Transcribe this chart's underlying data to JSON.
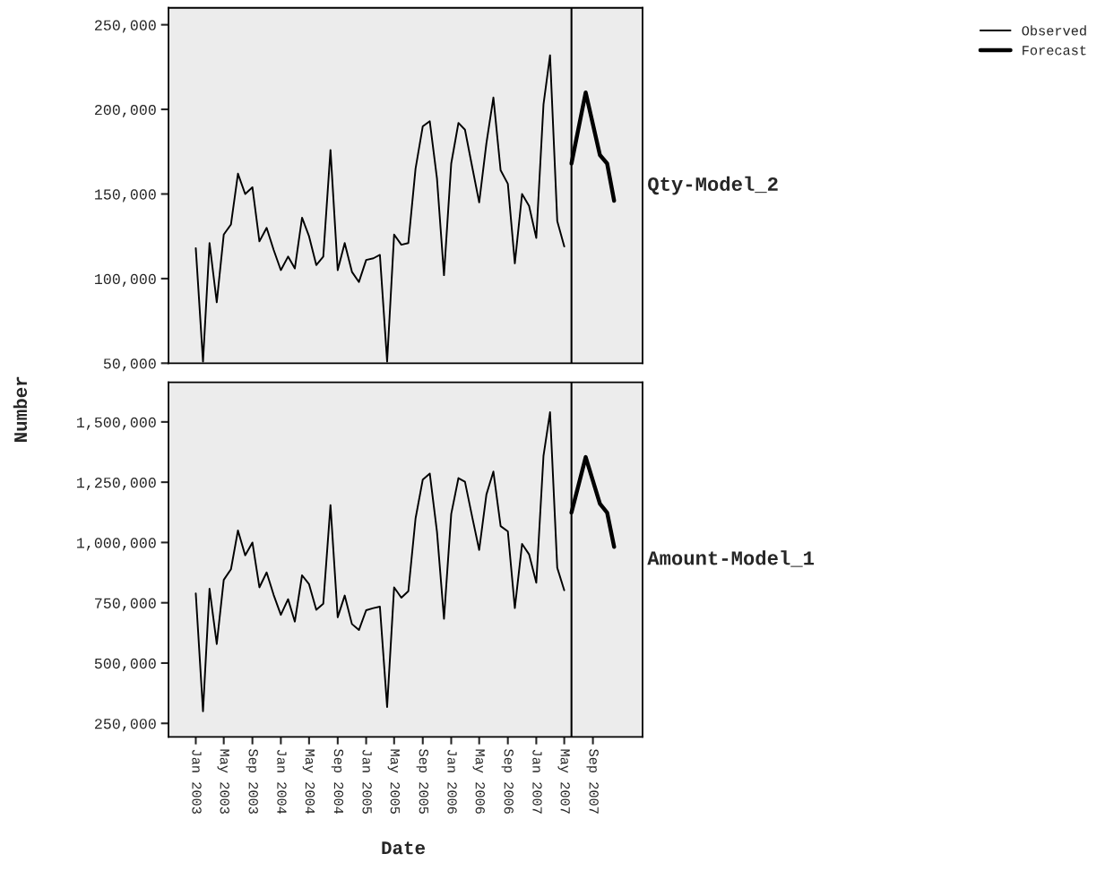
{
  "chart_data": [
    {
      "type": "line",
      "ylabel": "Number",
      "legend": "top right",
      "tick_labels": "y",
      "grid": false,
      "xlim": [
        "2002-09-06",
        "2008-04-01"
      ],
      "ylim": [
        50000,
        260000
      ],
      "yticks": [
        {
          "value": 50000,
          "label": "50,000"
        },
        {
          "value": 100000,
          "label": "100,000"
        },
        {
          "value": 150000,
          "label": "150,000"
        },
        {
          "value": 200000,
          "label": "200,000"
        },
        {
          "value": 250000,
          "label": "250,000"
        }
      ],
      "ref_lines": [
        {
          "axis": "x",
          "value": "2007-06",
          "color": "#000000"
        }
      ],
      "annotations": [
        "Qty-Model_2"
      ],
      "series": [
        {
          "name": "Observed",
          "color": "#000000",
          "x": [
            "2003-01",
            "2003-02",
            "2003-03",
            "2003-04",
            "2003-05",
            "2003-06",
            "2003-07",
            "2003-08",
            "2003-09",
            "2003-10",
            "2003-11",
            "2003-12",
            "2004-01",
            "2004-02",
            "2004-03",
            "2004-04",
            "2004-05",
            "2004-06",
            "2004-07",
            "2004-08",
            "2004-09",
            "2004-10",
            "2004-11",
            "2004-12",
            "2005-01",
            "2005-02",
            "2005-03",
            "2005-04",
            "2005-05",
            "2005-06",
            "2005-07",
            "2005-08",
            "2005-09",
            "2005-10",
            "2005-11",
            "2005-12",
            "2006-01",
            "2006-02",
            "2006-03",
            "2006-04",
            "2006-05",
            "2006-06",
            "2006-07",
            "2006-08",
            "2006-09",
            "2006-10",
            "2006-11",
            "2006-12",
            "2007-01",
            "2007-02",
            "2007-03",
            "2007-04",
            "2007-05"
          ],
          "values": [
            118000,
            51000,
            121000,
            86000,
            126000,
            132000,
            162000,
            150000,
            154000,
            122000,
            130000,
            117000,
            105000,
            113000,
            106000,
            136000,
            125000,
            108000,
            113000,
            176000,
            105000,
            121000,
            104000,
            98000,
            111000,
            112000,
            114000,
            51000,
            126000,
            120000,
            121000,
            165000,
            190000,
            193000,
            159000,
            102000,
            168000,
            192000,
            188000,
            166000,
            145000,
            180000,
            207000,
            164000,
            156000,
            109000,
            150000,
            143000,
            124000,
            203000,
            232000,
            134000,
            119000
          ]
        },
        {
          "name": "Forecast",
          "color": "#000000",
          "x": [
            "2007-06",
            "2007-08",
            "2007-10",
            "2007-11",
            "2007-12"
          ],
          "values": [
            168000,
            210000,
            173000,
            168000,
            146000
          ]
        }
      ]
    },
    {
      "type": "line",
      "xlabel": "Date",
      "legend": false,
      "grid": false,
      "xlim": [
        "2002-09-06",
        "2008-04-01"
      ],
      "ylim": [
        194000,
        1664000
      ],
      "xticks": [
        {
          "value": "2003-01",
          "label": "Jan 2003"
        },
        {
          "value": "2003-05",
          "label": "May 2003"
        },
        {
          "value": "2003-09",
          "label": "Sep 2003"
        },
        {
          "value": "2004-01",
          "label": "Jan 2004"
        },
        {
          "value": "2004-05",
          "label": "May 2004"
        },
        {
          "value": "2004-09",
          "label": "Sep 2004"
        },
        {
          "value": "2005-01",
          "label": "Jan 2005"
        },
        {
          "value": "2005-05",
          "label": "May 2005"
        },
        {
          "value": "2005-09",
          "label": "Sep 2005"
        },
        {
          "value": "2006-01",
          "label": "Jan 2006"
        },
        {
          "value": "2006-05",
          "label": "May 2006"
        },
        {
          "value": "2006-09",
          "label": "Sep 2006"
        },
        {
          "value": "2007-01",
          "label": "Jan 2007"
        },
        {
          "value": "2007-05",
          "label": "May 2007"
        },
        {
          "value": "2007-09",
          "label": "Sep 2007"
        }
      ],
      "yticks": [
        {
          "value": 250000,
          "label": "250,000"
        },
        {
          "value": 500000,
          "label": "500,000"
        },
        {
          "value": 750000,
          "label": "750,000"
        },
        {
          "value": 1000000,
          "label": "1,000,000"
        },
        {
          "value": 1250000,
          "label": "1,250,000"
        },
        {
          "value": 1500000,
          "label": "1,500,000"
        }
      ],
      "ref_lines": [
        {
          "axis": "x",
          "value": "2007-06",
          "color": "#000000"
        }
      ],
      "annotations": [
        "Amount-Model_1"
      ],
      "series": [
        {
          "color": "#000000",
          "x": [
            "2003-01",
            "2003-02",
            "2003-03",
            "2003-04",
            "2003-05",
            "2003-06",
            "2003-07",
            "2003-08",
            "2003-09",
            "2003-10",
            "2003-11",
            "2003-12",
            "2004-01",
            "2004-02",
            "2004-03",
            "2004-04",
            "2004-05",
            "2004-06",
            "2004-07",
            "2004-08",
            "2004-09",
            "2004-10",
            "2004-11",
            "2004-12",
            "2005-01",
            "2005-02",
            "2005-03",
            "2005-04",
            "2005-05",
            "2005-06",
            "2005-07",
            "2005-08",
            "2005-09",
            "2005-10",
            "2005-11",
            "2005-12",
            "2006-01",
            "2006-02",
            "2006-03",
            "2006-04",
            "2006-05",
            "2006-06",
            "2006-07",
            "2006-08",
            "2006-09",
            "2006-10",
            "2006-11",
            "2006-12",
            "2007-01",
            "2007-02",
            "2007-03",
            "2007-04",
            "2007-05"
          ],
          "values": [
            789000,
            300000,
            808000,
            579000,
            845000,
            889000,
            1050000,
            947000,
            1000000,
            814000,
            876000,
            783000,
            700000,
            765000,
            672000,
            864000,
            827000,
            721000,
            746000,
            1155000,
            690000,
            780000,
            662000,
            637000,
            719000,
            728000,
            734000,
            318000,
            814000,
            771000,
            798000,
            1100000,
            1261000,
            1286000,
            1044000,
            684000,
            1118000,
            1267000,
            1252000,
            1106000,
            969000,
            1199000,
            1294000,
            1068000,
            1046000,
            728000,
            994000,
            951000,
            833000,
            1360000,
            1540000,
            895000,
            802000
          ]
        },
        {
          "color": "#000000",
          "x": [
            "2007-06",
            "2007-08",
            "2007-10",
            "2007-11",
            "2007-12"
          ],
          "values": [
            1124000,
            1354000,
            1161000,
            1124000,
            982000
          ]
        }
      ]
    }
  ]
}
